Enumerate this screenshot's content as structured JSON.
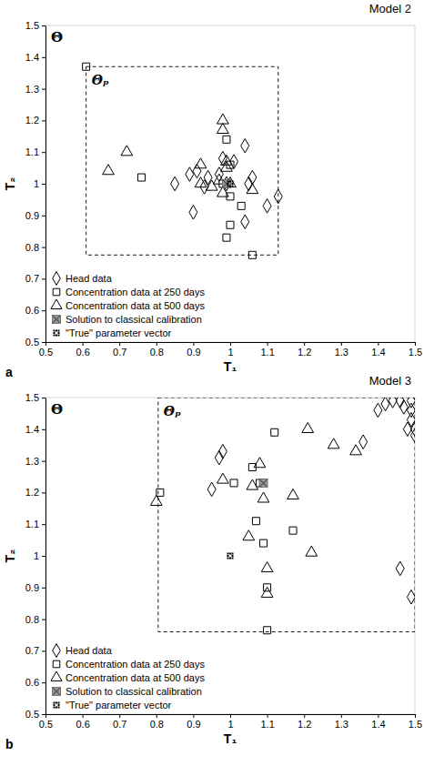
{
  "chart_data": [
    {
      "type": "scatter",
      "title": "Model 2",
      "panel_label": "a",
      "domain_label": "Θ",
      "x_label": "T₁",
      "y_label": "T₂",
      "xlim": [
        0.5,
        1.5
      ],
      "ylim": [
        0.5,
        1.5
      ],
      "xticks": [
        0.5,
        0.6,
        0.7,
        0.8,
        0.9,
        1,
        1.1,
        1.2,
        1.3,
        1.4,
        1.5
      ],
      "yticks": [
        0.5,
        0.6,
        0.7,
        0.8,
        0.9,
        1,
        1.1,
        1.2,
        1.3,
        1.4,
        1.5
      ],
      "legend": "lower left",
      "region": {
        "label": "Θₚ",
        "line_style": "dashed",
        "x": [
          0.61,
          1.13
        ],
        "y": [
          0.775,
          1.37
        ]
      },
      "series": [
        {
          "name": "Head data",
          "marker": "diamond",
          "color": "#000000",
          "x": [
            0.85,
            0.9,
            0.89,
            0.91,
            0.94,
            0.93,
            0.97,
            0.98,
            1.04,
            1.04,
            1.06,
            1.05,
            1.1,
            1.13,
            0.99,
            1.01
          ],
          "values": [
            1.0,
            0.91,
            1.03,
            1.04,
            1.02,
            0.99,
            1.03,
            1.08,
            1.12,
            0.88,
            1.02,
            1.0,
            0.93,
            0.96,
            1.0,
            1.07
          ]
        },
        {
          "name": "Concentration data at 250 days",
          "marker": "square",
          "color": "#000000",
          "x": [
            0.61,
            0.76,
            0.99,
            1.0,
            0.98,
            1.0,
            0.99,
            1.03,
            1.06,
            1.0
          ],
          "values": [
            1.37,
            1.02,
            1.14,
            1.06,
            1.0,
            0.87,
            0.83,
            0.93,
            0.775,
            0.96
          ]
        },
        {
          "name": "Concentration data at 500 days",
          "marker": "triangle",
          "color": "#000000",
          "x": [
            0.67,
            0.72,
            0.92,
            0.92,
            0.95,
            0.98,
            0.98,
            0.99,
            0.99,
            1.0,
            0.98,
            1.06,
            0.97
          ],
          "values": [
            1.04,
            1.1,
            1.06,
            1.0,
            0.99,
            1.2,
            1.17,
            1.07,
            1.05,
            1.0,
            0.97,
            0.98,
            1.01
          ]
        },
        {
          "name": "Solution to classical calibration",
          "marker": "square-x",
          "color": "#999999",
          "x": [
            0.99
          ],
          "values": [
            1.0
          ]
        },
        {
          "name": "\"True\" parameter vector",
          "marker": "dots",
          "color": "#000000",
          "x": [
            1.0
          ],
          "values": [
            1.0
          ]
        }
      ]
    },
    {
      "type": "scatter",
      "title": "Model 3",
      "panel_label": "b",
      "domain_label": "Θ",
      "x_label": "T₁",
      "y_label": "T₂",
      "xlim": [
        0.5,
        1.5
      ],
      "ylim": [
        0.5,
        1.5
      ],
      "xticks": [
        0.5,
        0.6,
        0.7,
        0.8,
        0.9,
        1,
        1.1,
        1.2,
        1.3,
        1.4,
        1.5
      ],
      "yticks": [
        0.5,
        0.6,
        0.7,
        0.8,
        0.9,
        1,
        1.1,
        1.2,
        1.3,
        1.4,
        1.5
      ],
      "legend": "lower left",
      "region": {
        "label": "Θₚ",
        "line_style": "dashed",
        "x": [
          0.805,
          1.5
        ],
        "y": [
          0.76,
          1.5
        ]
      },
      "series": [
        {
          "name": "Head data",
          "marker": "diamond",
          "color": "#000000",
          "x": [
            0.95,
            0.97,
            0.98,
            1.36,
            1.4,
            1.42,
            1.44,
            1.46,
            1.47,
            1.49,
            1.49,
            1.49,
            1.5,
            1.48,
            1.5,
            1.46,
            1.49
          ],
          "values": [
            1.21,
            1.31,
            1.33,
            1.36,
            1.46,
            1.48,
            1.49,
            1.49,
            1.47,
            1.49,
            1.46,
            1.43,
            1.4,
            1.4,
            1.38,
            0.96,
            0.87
          ]
        },
        {
          "name": "Concentration data at 250 days",
          "marker": "square",
          "color": "#000000",
          "x": [
            0.81,
            1.01,
            1.06,
            1.07,
            1.08,
            1.12,
            1.09,
            1.1,
            1.17,
            1.1
          ],
          "values": [
            1.2,
            1.23,
            1.28,
            1.11,
            1.23,
            1.39,
            1.04,
            0.9,
            1.08,
            0.765
          ]
        },
        {
          "name": "Concentration data at 500 days",
          "marker": "triangle",
          "color": "#000000",
          "x": [
            0.8,
            0.98,
            1.05,
            1.06,
            1.08,
            1.09,
            1.1,
            1.1,
            1.17,
            1.21,
            1.22,
            1.28,
            1.34
          ],
          "values": [
            1.17,
            1.24,
            1.06,
            1.22,
            1.29,
            1.18,
            0.96,
            0.88,
            1.19,
            1.4,
            1.01,
            1.35,
            1.33
          ]
        },
        {
          "name": "Solution to classical calibration",
          "marker": "square-x",
          "color": "#999999",
          "x": [
            1.09
          ],
          "values": [
            1.23
          ]
        },
        {
          "name": "\"True\" parameter vector",
          "marker": "dots",
          "color": "#000000",
          "x": [
            1.0
          ],
          "values": [
            1.0
          ]
        }
      ]
    }
  ]
}
